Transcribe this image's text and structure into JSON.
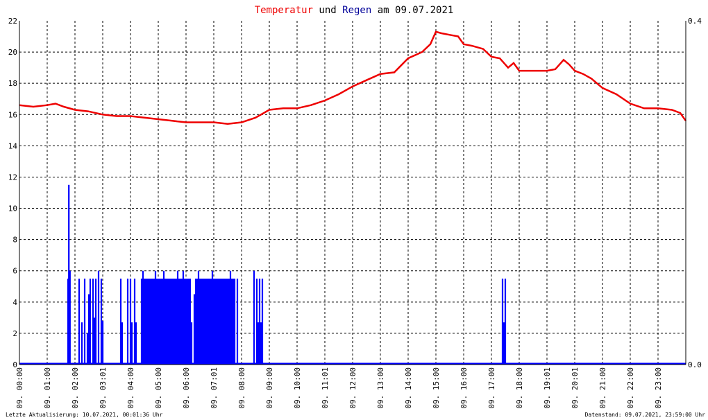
{
  "chart_data": {
    "type": "line",
    "title": {
      "part1": "Temperatur",
      "part2": " und ",
      "part3": "Regen",
      "part4": " am 09.07.2021"
    },
    "colors": {
      "temperature": "#ee0000",
      "rain": "#0000ff",
      "title_red": "#ee0000",
      "title_blue": "#000099",
      "grid": "#000000",
      "axis": "#000000",
      "background": "#ffffff"
    },
    "x_tick_labels": [
      "09. 00:00",
      "09. 01:00",
      "09. 02:00",
      "09. 03:01",
      "09. 04:00",
      "09. 05:00",
      "09. 06:00",
      "09. 07:01",
      "09. 08:00",
      "09. 09:00",
      "09. 10:00",
      "09. 11:01",
      "09. 12:00",
      "09. 13:00",
      "09. 14:00",
      "09. 15:00",
      "09. 16:00",
      "09. 17:00",
      "09. 18:00",
      "09. 19:01",
      "09. 20:01",
      "09. 21:00",
      "09. 22:00",
      "09. 23:00"
    ],
    "x_range_hours": [
      0,
      24
    ],
    "y_left": {
      "ylim": [
        0,
        22
      ],
      "ticks": [
        "0",
        "2",
        "4",
        "6",
        "8",
        "10",
        "12",
        "14",
        "16",
        "18",
        "20",
        "22"
      ]
    },
    "y_right": {
      "ylim": [
        0,
        0.4
      ],
      "ticks": [
        "0.0",
        "0.4"
      ]
    },
    "grid": true,
    "series": [
      {
        "key": "temperature",
        "x_hours": [
          0,
          0.5,
          1.0,
          1.3,
          1.6,
          2.0,
          2.5,
          3.0,
          3.5,
          4.0,
          4.5,
          5.0,
          5.5,
          6.0,
          6.5,
          7.0,
          7.5,
          8.0,
          8.5,
          9.0,
          9.5,
          10.0,
          10.5,
          11.0,
          11.5,
          12.0,
          12.5,
          13.0,
          13.5,
          14.0,
          14.5,
          14.8,
          15.0,
          15.2,
          15.5,
          15.8,
          16.0,
          16.3,
          16.7,
          17.0,
          17.3,
          17.6,
          17.8,
          18.0,
          18.3,
          18.7,
          19.0,
          19.3,
          19.6,
          19.8,
          20.0,
          20.3,
          20.6,
          21.0,
          21.5,
          22.0,
          22.5,
          23.0,
          23.5,
          23.8,
          24.0
        ],
        "values": [
          16.6,
          16.5,
          16.6,
          16.7,
          16.5,
          16.3,
          16.2,
          16.0,
          15.9,
          15.9,
          15.8,
          15.7,
          15.6,
          15.5,
          15.5,
          15.5,
          15.4,
          15.5,
          15.8,
          16.3,
          16.4,
          16.4,
          16.6,
          16.9,
          17.3,
          17.8,
          18.2,
          18.6,
          18.7,
          19.6,
          20.0,
          20.5,
          21.3,
          21.2,
          21.1,
          21.0,
          20.5,
          20.4,
          20.2,
          19.7,
          19.6,
          19.0,
          19.3,
          18.8,
          18.8,
          18.8,
          18.8,
          18.9,
          19.5,
          19.2,
          18.8,
          18.6,
          18.3,
          17.7,
          17.3,
          16.7,
          16.4,
          16.4,
          16.3,
          16.1,
          15.6
        ]
      },
      {
        "key": "rain",
        "bars_hours": [
          [
            1.75,
            5.5
          ],
          [
            1.78,
            11.5
          ],
          [
            1.82,
            6.0
          ],
          [
            2.15,
            5.5
          ],
          [
            2.25,
            2.7
          ],
          [
            2.35,
            5.5
          ],
          [
            2.45,
            2.0
          ],
          [
            2.5,
            4.5
          ],
          [
            2.55,
            5.5
          ],
          [
            2.65,
            5.5
          ],
          [
            2.7,
            3.0
          ],
          [
            2.75,
            5.5
          ],
          [
            2.85,
            6.0
          ],
          [
            2.95,
            5.5
          ],
          [
            3.0,
            2.8
          ],
          [
            3.65,
            5.5
          ],
          [
            3.7,
            2.7
          ],
          [
            3.9,
            5.5
          ],
          [
            4.0,
            5.5
          ],
          [
            4.05,
            2.7
          ],
          [
            4.15,
            5.5
          ],
          [
            4.2,
            2.7
          ],
          [
            4.4,
            5.5
          ],
          [
            4.45,
            6.0
          ],
          [
            4.5,
            5.5
          ],
          [
            4.55,
            5.5
          ],
          [
            4.6,
            5.5
          ],
          [
            4.65,
            5.5
          ],
          [
            4.7,
            5.5
          ],
          [
            4.75,
            5.5
          ],
          [
            4.8,
            5.5
          ],
          [
            4.85,
            5.5
          ],
          [
            4.9,
            6.0
          ],
          [
            4.95,
            5.5
          ],
          [
            5.0,
            5.5
          ],
          [
            5.05,
            5.5
          ],
          [
            5.1,
            5.5
          ],
          [
            5.15,
            5.5
          ],
          [
            5.2,
            6.0
          ],
          [
            5.25,
            5.5
          ],
          [
            5.3,
            5.5
          ],
          [
            5.35,
            5.5
          ],
          [
            5.4,
            5.5
          ],
          [
            5.45,
            5.5
          ],
          [
            5.5,
            5.5
          ],
          [
            5.55,
            5.5
          ],
          [
            5.6,
            5.5
          ],
          [
            5.65,
            5.5
          ],
          [
            5.7,
            6.0
          ],
          [
            5.75,
            5.5
          ],
          [
            5.8,
            5.5
          ],
          [
            5.85,
            5.5
          ],
          [
            5.9,
            6.0
          ],
          [
            5.95,
            5.5
          ],
          [
            6.0,
            5.5
          ],
          [
            6.05,
            5.5
          ],
          [
            6.1,
            5.5
          ],
          [
            6.15,
            5.5
          ],
          [
            6.2,
            2.7
          ],
          [
            6.3,
            4.5
          ],
          [
            6.35,
            5.5
          ],
          [
            6.4,
            5.5
          ],
          [
            6.45,
            6.0
          ],
          [
            6.5,
            5.5
          ],
          [
            6.55,
            5.5
          ],
          [
            6.6,
            5.5
          ],
          [
            6.65,
            5.5
          ],
          [
            6.7,
            5.5
          ],
          [
            6.75,
            5.5
          ],
          [
            6.8,
            5.5
          ],
          [
            6.85,
            5.5
          ],
          [
            6.9,
            5.5
          ],
          [
            6.95,
            6.0
          ],
          [
            7.0,
            5.5
          ],
          [
            7.05,
            5.5
          ],
          [
            7.1,
            5.5
          ],
          [
            7.15,
            5.5
          ],
          [
            7.2,
            5.5
          ],
          [
            7.25,
            5.5
          ],
          [
            7.3,
            5.5
          ],
          [
            7.35,
            5.5
          ],
          [
            7.4,
            5.5
          ],
          [
            7.45,
            5.5
          ],
          [
            7.5,
            5.5
          ],
          [
            7.55,
            5.5
          ],
          [
            7.6,
            6.0
          ],
          [
            7.65,
            5.5
          ],
          [
            7.7,
            5.5
          ],
          [
            7.75,
            5.5
          ],
          [
            7.85,
            5.5
          ],
          [
            8.45,
            6.0
          ],
          [
            8.55,
            5.5
          ],
          [
            8.6,
            2.7
          ],
          [
            8.65,
            5.5
          ],
          [
            8.7,
            2.7
          ],
          [
            8.75,
            5.5
          ],
          [
            17.4,
            5.5
          ],
          [
            17.45,
            2.7
          ],
          [
            17.5,
            5.5
          ]
        ]
      }
    ]
  },
  "footer": {
    "left": "Letzte Aktualisierung: 10.07.2021, 00:01:36 Uhr",
    "right": "Datenstand: 09.07.2021, 23:59:00 Uhr"
  }
}
